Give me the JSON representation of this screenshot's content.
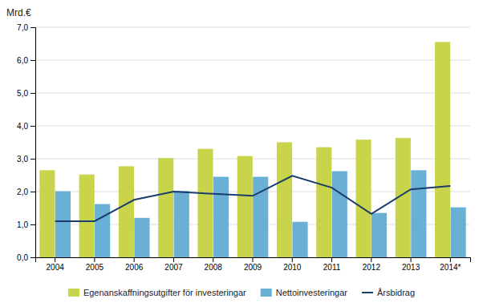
{
  "chart_data": {
    "type": "bar",
    "ylabel": "Mrd.€",
    "categories": [
      "2004",
      "2005",
      "2006",
      "2007",
      "2008",
      "2009",
      "2010",
      "2011",
      "2012",
      "2013",
      "2014*"
    ],
    "series": [
      {
        "name": "Egenanskaffningsutgifter för investeringar",
        "type": "bar",
        "color": "#c8d44a",
        "values": [
          2.65,
          2.52,
          2.77,
          3.02,
          3.3,
          3.08,
          3.5,
          3.35,
          3.58,
          3.63,
          6.55
        ]
      },
      {
        "name": "Nettoinvesteringar",
        "type": "bar",
        "color": "#6ab0d4",
        "values": [
          2.01,
          1.62,
          1.2,
          2.02,
          2.45,
          2.45,
          1.08,
          2.62,
          1.35,
          2.65,
          1.52
        ]
      },
      {
        "name": "Årsbidrag",
        "type": "line",
        "color": "#1a3d6e",
        "values": [
          1.1,
          1.1,
          1.75,
          2.0,
          1.93,
          1.87,
          2.48,
          2.12,
          1.32,
          2.07,
          2.17
        ]
      }
    ],
    "ylim": [
      0,
      7.0
    ],
    "yticks": [
      {
        "value": 0.0,
        "label": "0,0"
      },
      {
        "value": 1.0,
        "label": "1,0"
      },
      {
        "value": 2.0,
        "label": "2,0"
      },
      {
        "value": 3.0,
        "label": "3,0"
      },
      {
        "value": 4.0,
        "label": "4,0"
      },
      {
        "value": 5.0,
        "label": "5,0"
      },
      {
        "value": 6.0,
        "label": "6,0"
      },
      {
        "value": 7.0,
        "label": "7,0"
      }
    ],
    "grid": true,
    "legend": "bottom"
  }
}
